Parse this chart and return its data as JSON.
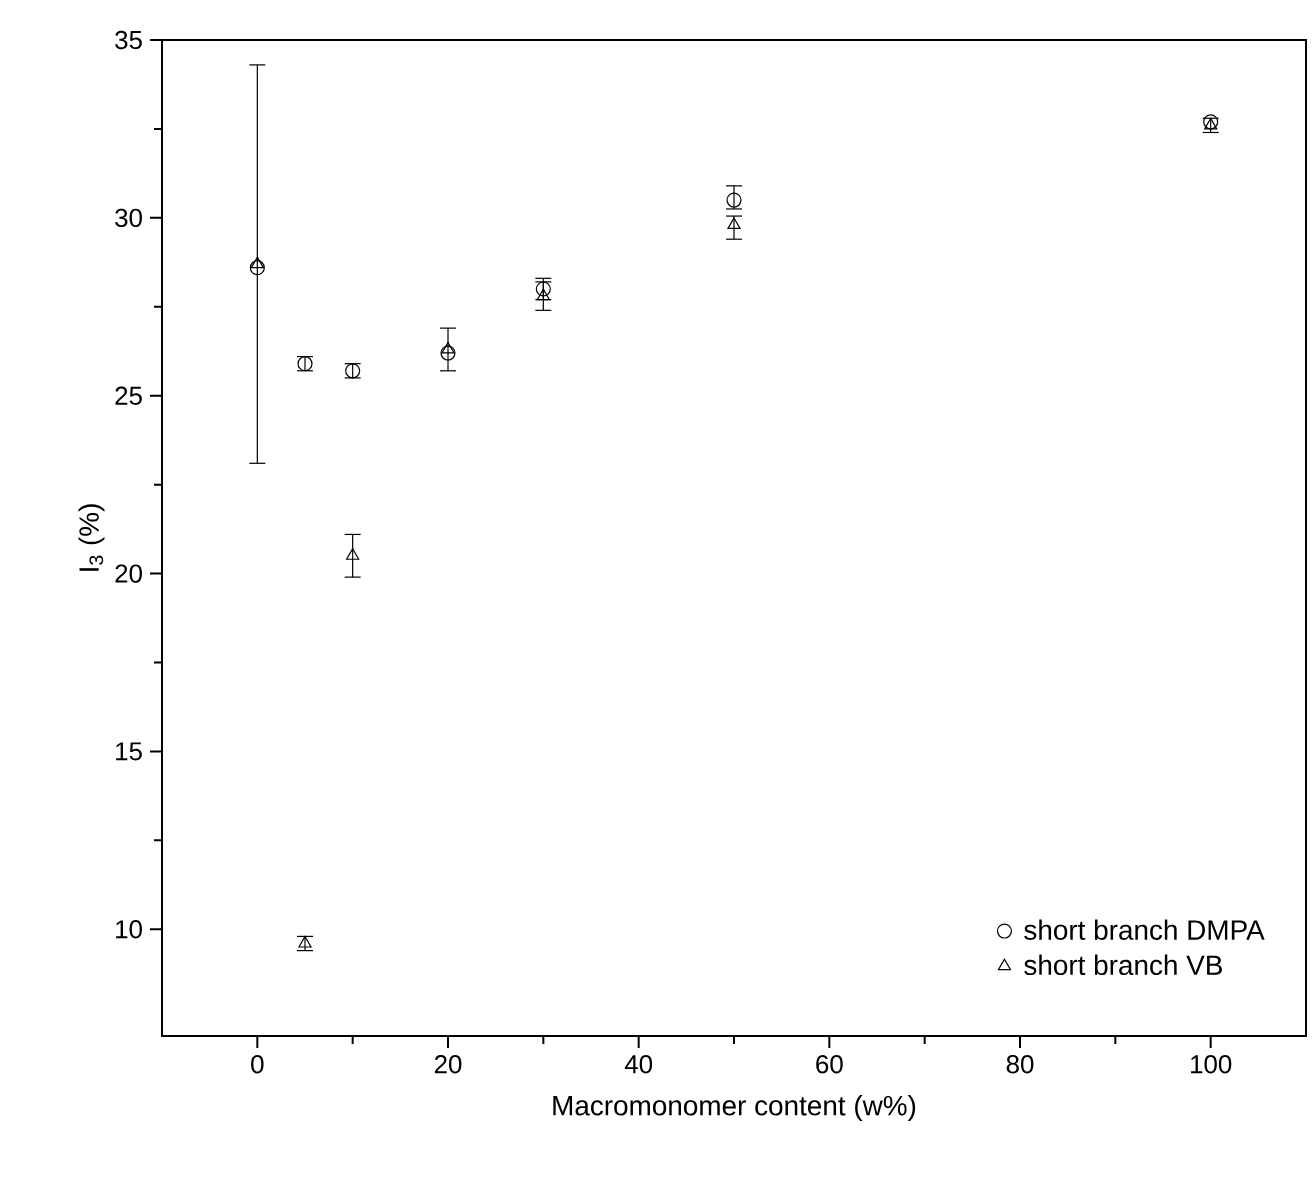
{
  "chart_data": {
    "type": "scatter",
    "xlabel": "Macromonomer content (w%)",
    "ylabel": "I$_{3}$ (%)",
    "xlim": [
      -10,
      110
    ],
    "ylim": [
      7,
      35
    ],
    "xticks": [
      0,
      20,
      40,
      60,
      80,
      100
    ],
    "yticks": [
      10,
      15,
      20,
      25,
      30,
      35
    ],
    "grid": false,
    "legend": "bottom right",
    "series": [
      {
        "name": "short branch DMPA",
        "color": "#000000",
        "marker": "circle",
        "x": [
          0,
          5,
          10,
          20,
          30,
          50,
          100
        ],
        "values": [
          28.6,
          25.9,
          25.7,
          26.2,
          28.0,
          30.5,
          32.7
        ],
        "errors": [
          null,
          0.2,
          0.2,
          null,
          0.3,
          [
            30.25,
            30.9
          ],
          null
        ]
      },
      {
        "name": "short branch VB",
        "color": "#000000",
        "marker": "triangle",
        "x": [
          0,
          5,
          10,
          20,
          30,
          50,
          100
        ],
        "values": [
          28.7,
          9.6,
          20.5,
          26.3,
          27.8,
          29.8,
          32.6
        ],
        "errors": [
          5.6,
          0.2,
          0.6,
          0.6,
          0.4,
          [
            29.4,
            30.05
          ],
          0.2
        ]
      }
    ]
  }
}
